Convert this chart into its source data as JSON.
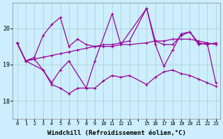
{
  "background_color": "#cceeff",
  "line_color": "#990099",
  "grid_color": "#aacccc",
  "xlabel": "Windchill (Refroidissement éolien,°C)",
  "xlabel_fontsize": 6.5,
  "ylim": [
    17.5,
    20.7
  ],
  "xlim": [
    -0.5,
    23.5
  ],
  "series1_x": [
    0,
    1,
    2,
    3,
    4,
    5,
    6,
    7,
    8,
    9,
    10,
    11,
    12,
    13,
    15,
    16,
    17,
    18,
    19,
    20,
    21,
    22,
    23
  ],
  "series1_y": [
    19.6,
    19.1,
    19.2,
    19.8,
    20.1,
    20.3,
    19.5,
    19.7,
    19.55,
    19.5,
    19.55,
    19.55,
    19.6,
    19.65,
    20.55,
    19.65,
    19.55,
    19.55,
    19.8,
    19.9,
    19.6,
    19.55,
    19.6
  ],
  "series2_x": [
    0,
    1,
    2,
    3,
    4,
    5,
    6,
    7,
    8,
    9,
    10,
    11,
    12,
    13,
    15,
    16,
    17,
    18,
    19,
    20,
    21,
    22,
    23
  ],
  "series2_y": [
    19.6,
    19.1,
    19.15,
    18.85,
    18.45,
    18.35,
    18.2,
    18.35,
    18.35,
    18.35,
    18.55,
    18.7,
    18.65,
    18.7,
    18.45,
    18.65,
    18.8,
    18.85,
    18.75,
    18.7,
    18.6,
    18.5,
    18.4
  ],
  "series3_x": [
    0,
    1,
    2,
    3,
    4,
    5,
    6,
    7,
    8,
    9,
    10,
    11,
    12,
    13,
    15,
    16,
    17,
    18,
    19,
    20,
    21,
    22,
    23
  ],
  "series3_y": [
    19.6,
    19.1,
    19.15,
    19.2,
    19.25,
    19.3,
    19.35,
    19.4,
    19.45,
    19.5,
    19.5,
    19.5,
    19.55,
    19.55,
    19.6,
    19.65,
    19.65,
    19.7,
    19.7,
    19.7,
    19.65,
    19.6,
    19.55
  ],
  "series4_x": [
    0,
    1,
    3,
    4,
    5,
    6,
    8,
    9,
    11,
    12,
    15,
    16,
    17,
    18,
    19,
    20,
    21,
    22,
    23
  ],
  "series4_y": [
    19.6,
    19.1,
    18.85,
    18.5,
    18.85,
    19.1,
    18.35,
    19.1,
    20.4,
    19.55,
    20.55,
    19.55,
    18.95,
    19.4,
    19.85,
    19.9,
    19.55,
    19.6,
    18.5
  ],
  "yticks": [
    18,
    19,
    20
  ],
  "xtick_labels": [
    "0",
    "1",
    "2",
    "3",
    "4",
    "5",
    "6",
    "7",
    "8",
    "9",
    "10",
    "11",
    "12",
    "13",
    "",
    "15",
    "16",
    "17",
    "18",
    "19",
    "20",
    "21",
    "22",
    "23"
  ]
}
